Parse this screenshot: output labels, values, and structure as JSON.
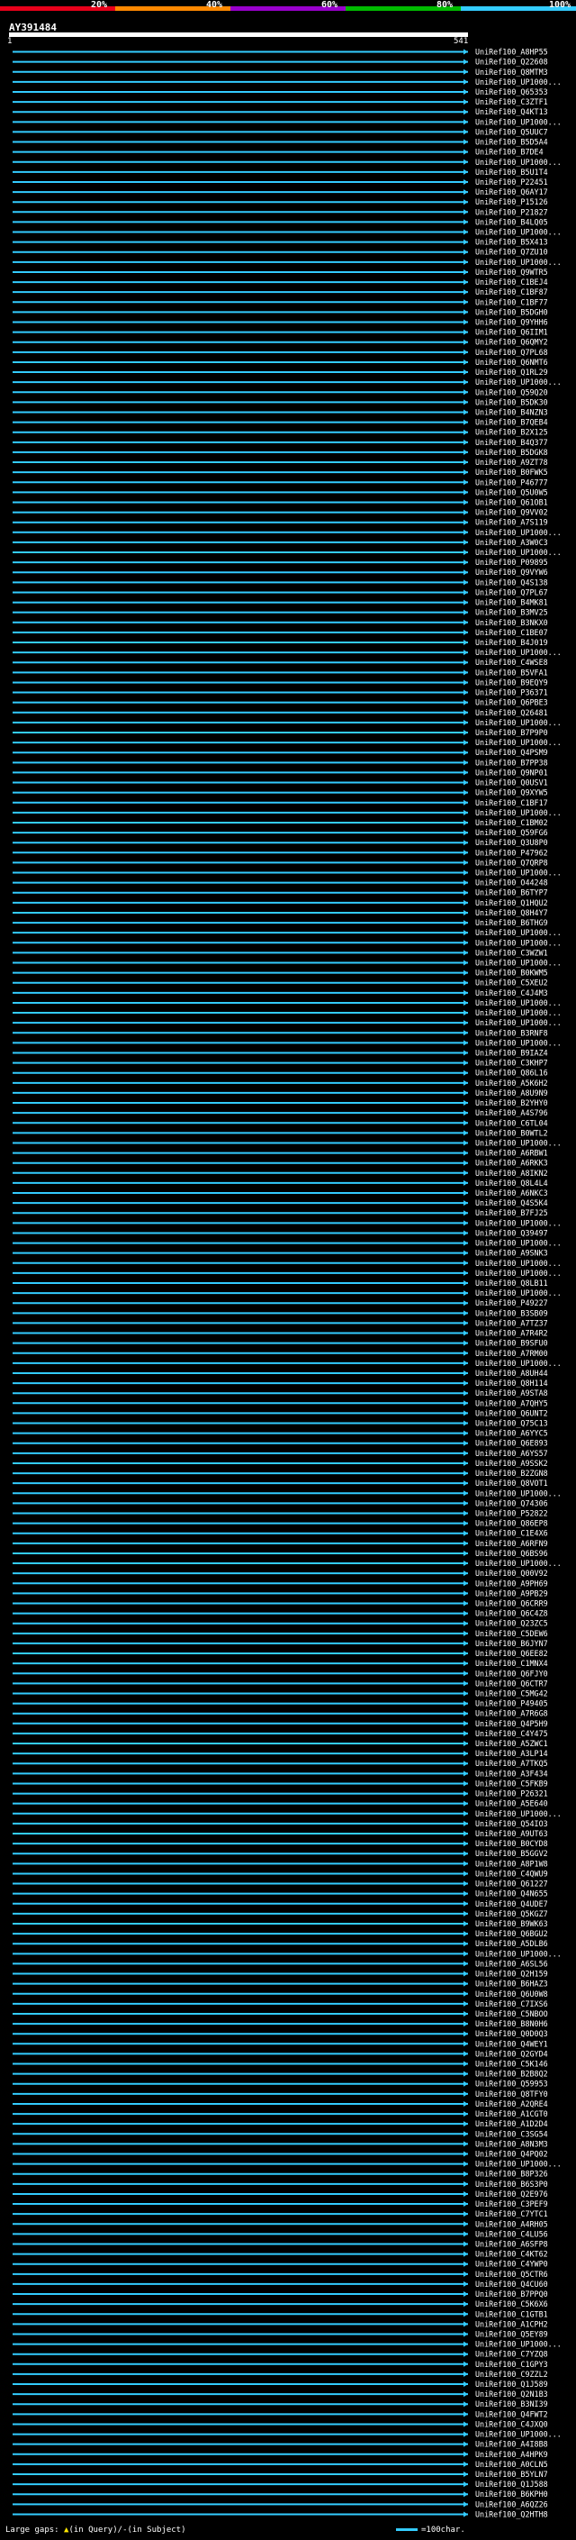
{
  "header": {
    "legend": [
      {
        "label": "20%",
        "color": "#e8001a"
      },
      {
        "label": "40%",
        "color": "#ff8800"
      },
      {
        "label": "60%",
        "color": "#9900cc"
      },
      {
        "label": "80%",
        "color": "#00bb00"
      },
      {
        "label": "100%",
        "color": "#33ccff"
      }
    ],
    "query_name": "AY391484",
    "ruler_start": "1",
    "ruler_end": "541"
  },
  "hits": [
    {
      "label": "UniRef100_A8HP55",
      "color": "#33ccff"
    },
    {
      "label": "UniRef100_Q22608",
      "color": "#33ccff"
    },
    {
      "label": "UniRef100_Q8MTM3",
      "color": "#33ccff"
    },
    {
      "label": "UniRef100_UP1000...",
      "color": "#33ccff"
    },
    {
      "label": "UniRef100_Q65353",
      "color": "#33ccff"
    },
    {
      "label": "UniRef100_C3ZTF1",
      "color": "#33ccff"
    },
    {
      "label": "UniRef100_Q4KT13",
      "color": "#33ccff"
    },
    {
      "label": "UniRef100_UP1000...",
      "color": "#33ccff"
    },
    {
      "label": "UniRef100_Q5UUC7",
      "color": "#33ccff"
    },
    {
      "label": "UniRef100_B5D5A4",
      "color": "#33ccff"
    },
    {
      "label": "UniRef100_B7DE4",
      "color": "#33ccff"
    },
    {
      "label": "UniRef100_UP1000...",
      "color": "#33ccff"
    },
    {
      "label": "UniRef100_B5U1T4",
      "color": "#33ccff"
    },
    {
      "label": "UniRef100_P22451",
      "color": "#33ccff"
    },
    {
      "label": "UniRef100_Q6AY17",
      "color": "#33ccff"
    },
    {
      "label": "UniRef100_P15126",
      "color": "#33ccff"
    },
    {
      "label": "UniRef100_P21827",
      "color": "#33ccff"
    },
    {
      "label": "UniRef100_B4LQ05",
      "color": "#33ccff"
    },
    {
      "label": "UniRef100_UP1000...",
      "color": "#33ccff"
    },
    {
      "label": "UniRef100_B5X413",
      "color": "#33ccff"
    },
    {
      "label": "UniRef100_Q7ZU10",
      "color": "#33ccff"
    },
    {
      "label": "UniRef100_UP1000...",
      "color": "#33ccff"
    },
    {
      "label": "UniRef100_Q9WTR5",
      "color": "#33ccff"
    },
    {
      "label": "UniRef100_C1BEJ4",
      "color": "#33ccff"
    },
    {
      "label": "UniRef100_C1BF87",
      "color": "#33ccff"
    },
    {
      "label": "UniRef100_C1BF77",
      "color": "#33ccff"
    },
    {
      "label": "UniRef100_B5DGH0",
      "color": "#33ccff"
    },
    {
      "label": "UniRef100_Q9YHH6",
      "color": "#33ccff"
    },
    {
      "label": "UniRef100_Q6IIM1",
      "color": "#33ccff"
    },
    {
      "label": "UniRef100_Q6QMY2",
      "color": "#33ccff"
    },
    {
      "label": "UniRef100_Q7PL68",
      "color": "#33ccff"
    },
    {
      "label": "UniRef100_Q6NMT6",
      "color": "#33ccff"
    },
    {
      "label": "UniRef100_Q1RL29",
      "color": "#33ccff"
    },
    {
      "label": "UniRef100_UP1000...",
      "color": "#33ccff"
    },
    {
      "label": "UniRef100_Q59Q20",
      "color": "#33ccff"
    },
    {
      "label": "UniRef100_B5DK30",
      "color": "#33ccff"
    },
    {
      "label": "UniRef100_B4NZN3",
      "color": "#33ccff"
    },
    {
      "label": "UniRef100_B7QEB4",
      "color": "#33ccff"
    },
    {
      "label": "UniRef100_B2X125",
      "color": "#33ccff"
    },
    {
      "label": "UniRef100_B4Q377",
      "color": "#33ccff"
    },
    {
      "label": "UniRef100_B5DGK8",
      "color": "#33ccff"
    },
    {
      "label": "UniRef100_A9ZT78",
      "color": "#33ccff"
    },
    {
      "label": "UniRef100_B0FWK5",
      "color": "#33ccff"
    },
    {
      "label": "UniRef100_P46777",
      "color": "#33ccff"
    },
    {
      "label": "UniRef100_Q5U0W5",
      "color": "#33ccff"
    },
    {
      "label": "UniRef100_Q61OB1",
      "color": "#33ccff"
    },
    {
      "label": "UniRef100_Q9VV02",
      "color": "#33ccff"
    },
    {
      "label": "UniRef100_A7S119",
      "color": "#33ccff"
    },
    {
      "label": "UniRef100_UP1000...",
      "color": "#33ccff"
    },
    {
      "label": "UniRef100_A3W0C3",
      "color": "#33ccff"
    },
    {
      "label": "UniRef100_UP1000...",
      "color": "#33ccff"
    },
    {
      "label": "UniRef100_P09895",
      "color": "#33ccff"
    },
    {
      "label": "UniRef100_Q9VYW6",
      "color": "#33ccff"
    },
    {
      "label": "UniRef100_Q4S138",
      "color": "#33ccff"
    },
    {
      "label": "UniRef100_Q7PL67",
      "color": "#33ccff"
    },
    {
      "label": "UniRef100_B4MK81",
      "color": "#33ccff"
    },
    {
      "label": "UniRef100_B3MV25",
      "color": "#33ccff"
    },
    {
      "label": "UniRef100_B3NKX0",
      "color": "#33ccff"
    },
    {
      "label": "UniRef100_C1BE07",
      "color": "#33ccff"
    },
    {
      "label": "UniRef100_B4J019",
      "color": "#33ccff"
    },
    {
      "label": "UniRef100_UP1000...",
      "color": "#33ccff"
    },
    {
      "label": "UniRef100_C4WSE8",
      "color": "#33ccff"
    },
    {
      "label": "UniRef100_B5VFA1",
      "color": "#33ccff"
    },
    {
      "label": "UniRef100_B9EQY9",
      "color": "#33ccff"
    },
    {
      "label": "UniRef100_P36371",
      "color": "#33ccff"
    },
    {
      "label": "UniRef100_Q6PBE3",
      "color": "#33ccff"
    },
    {
      "label": "UniRef100_Q26481",
      "color": "#33ccff"
    },
    {
      "label": "UniRef100_UP1000...",
      "color": "#33ccff"
    },
    {
      "label": "UniRef100_B7P9P0",
      "color": "#33ccff"
    },
    {
      "label": "UniRef100_UP1000...",
      "color": "#33ccff"
    },
    {
      "label": "UniRef100_Q4PSM9",
      "color": "#33ccff"
    },
    {
      "label": "UniRef100_B7PP38",
      "color": "#33ccff"
    },
    {
      "label": "UniRef100_Q9NP01",
      "color": "#33ccff"
    },
    {
      "label": "UniRef100_Q0USV1",
      "color": "#33ccff"
    },
    {
      "label": "UniRef100_Q9XYW5",
      "color": "#33ccff"
    },
    {
      "label": "UniRef100_C1BF17",
      "color": "#33ccff"
    },
    {
      "label": "UniRef100_UP1000...",
      "color": "#33ccff"
    },
    {
      "label": "UniRef100_C1BM02",
      "color": "#33ccff"
    },
    {
      "label": "UniRef100_Q59FG6",
      "color": "#33ccff"
    },
    {
      "label": "UniRef100_Q3U8P0",
      "color": "#33ccff"
    },
    {
      "label": "UniRef100_P47962",
      "color": "#33ccff"
    },
    {
      "label": "UniRef100_Q7QRP8",
      "color": "#33ccff"
    },
    {
      "label": "UniRef100_UP1000...",
      "color": "#33ccff"
    },
    {
      "label": "UniRef100_O44248",
      "color": "#33ccff"
    },
    {
      "label": "UniRef100_B6TYP7",
      "color": "#33ccff"
    },
    {
      "label": "UniRef100_Q1HQU2",
      "color": "#33ccff"
    },
    {
      "label": "UniRef100_Q8H4Y7",
      "color": "#33ccff"
    },
    {
      "label": "UniRef100_B6THG9",
      "color": "#33ccff"
    },
    {
      "label": "UniRef100_UP1000...",
      "color": "#33ccff"
    },
    {
      "label": "UniRef100_UP1000...",
      "color": "#33ccff"
    },
    {
      "label": "UniRef100_C3WZW1",
      "color": "#33ccff"
    },
    {
      "label": "UniRef100_UP1000...",
      "color": "#33ccff"
    },
    {
      "label": "UniRef100_B0KWM5",
      "color": "#33ccff"
    },
    {
      "label": "UniRef100_C5XEU2",
      "color": "#33ccff"
    },
    {
      "label": "UniRef100_C4J4M3",
      "color": "#33ccff"
    },
    {
      "label": "UniRef100_UP1000...",
      "color": "#33ccff"
    },
    {
      "label": "UniRef100_UP1000...",
      "color": "#33ccff"
    },
    {
      "label": "UniRef100_UP1000...",
      "color": "#33ccff"
    },
    {
      "label": "UniRef100_B3RNF8",
      "color": "#33ccff"
    },
    {
      "label": "UniRef100_UP1000...",
      "color": "#33ccff"
    },
    {
      "label": "UniRef100_B9IAZ4",
      "color": "#33ccff"
    },
    {
      "label": "UniRef100_C3KHP7",
      "color": "#33ccff"
    },
    {
      "label": "UniRef100_Q86L16",
      "color": "#33ccff"
    },
    {
      "label": "UniRef100_A5K6H2",
      "color": "#33ccff"
    },
    {
      "label": "UniRef100_A8U9N9",
      "color": "#33ccff"
    },
    {
      "label": "UniRef100_B2YHY0",
      "color": "#33ccff"
    },
    {
      "label": "UniRef100_A4S796",
      "color": "#33ccff"
    },
    {
      "label": "UniRef100_C6TL04",
      "color": "#33ccff"
    },
    {
      "label": "UniRef100_B0WTL2",
      "color": "#33ccff"
    },
    {
      "label": "UniRef100_UP1000...",
      "color": "#33ccff"
    },
    {
      "label": "UniRef100_A6RBW1",
      "color": "#33ccff"
    },
    {
      "label": "UniRef100_A6RKK3",
      "color": "#33ccff"
    },
    {
      "label": "UniRef100_A8IKN2",
      "color": "#33ccff"
    },
    {
      "label": "UniRef100_Q8L4L4",
      "color": "#33ccff"
    },
    {
      "label": "UniRef100_A6NKC3",
      "color": "#33ccff"
    },
    {
      "label": "UniRef100_Q4S5K4",
      "color": "#33ccff"
    },
    {
      "label": "UniRef100_B7FJ25",
      "color": "#33ccff"
    },
    {
      "label": "UniRef100_UP1000...",
      "color": "#33ccff"
    },
    {
      "label": "UniRef100_Q39497",
      "color": "#33ccff"
    },
    {
      "label": "UniRef100_UP1000...",
      "color": "#33ccff"
    },
    {
      "label": "UniRef100_A9SNK3",
      "color": "#33ccff"
    },
    {
      "label": "UniRef100_UP1000...",
      "color": "#33ccff"
    },
    {
      "label": "UniRef100_UP1000...",
      "color": "#33ccff"
    },
    {
      "label": "UniRef100_Q8LB11",
      "color": "#33ccff"
    },
    {
      "label": "UniRef100_UP1000...",
      "color": "#33ccff"
    },
    {
      "label": "UniRef100_P49227",
      "color": "#33ccff"
    },
    {
      "label": "UniRef100_B3SB09",
      "color": "#33ccff"
    },
    {
      "label": "UniRef100_A7TZ37",
      "color": "#33ccff"
    },
    {
      "label": "UniRef100_A7R4R2",
      "color": "#33ccff"
    },
    {
      "label": "UniRef100_B9SFU0",
      "color": "#33ccff"
    },
    {
      "label": "UniRef100_A7RM00",
      "color": "#33ccff"
    },
    {
      "label": "UniRef100_UP1000...",
      "color": "#33ccff"
    },
    {
      "label": "UniRef100_A8UH44",
      "color": "#33ccff"
    },
    {
      "label": "UniRef100_Q8H114",
      "color": "#33ccff"
    },
    {
      "label": "UniRef100_A9STA8",
      "color": "#33ccff"
    },
    {
      "label": "UniRef100_A7QHY5",
      "color": "#33ccff"
    },
    {
      "label": "UniRef100_Q6UNT2",
      "color": "#33ccff"
    },
    {
      "label": "UniRef100_Q75C13",
      "color": "#33ccff"
    },
    {
      "label": "UniRef100_A6YYC5",
      "color": "#33ccff"
    },
    {
      "label": "UniRef100_Q6E893",
      "color": "#33ccff"
    },
    {
      "label": "UniRef100_A6YS57",
      "color": "#33ccff"
    },
    {
      "label": "UniRef100_A9SSK2",
      "color": "#33ccff"
    },
    {
      "label": "UniRef100_B2ZGN8",
      "color": "#33ccff"
    },
    {
      "label": "UniRef100_Q8VOT1",
      "color": "#33ccff"
    },
    {
      "label": "UniRef100_UP1000...",
      "color": "#33ccff"
    },
    {
      "label": "UniRef100_Q74306",
      "color": "#33ccff"
    },
    {
      "label": "UniRef100_P52822",
      "color": "#33ccff"
    },
    {
      "label": "UniRef100_Q86EP8",
      "color": "#33ccff"
    },
    {
      "label": "UniRef100_C1E4X6",
      "color": "#33ccff"
    },
    {
      "label": "UniRef100_A6RFN9",
      "color": "#33ccff"
    },
    {
      "label": "UniRef100_Q6BS96",
      "color": "#33ccff"
    },
    {
      "label": "UniRef100_UP1000...",
      "color": "#33ccff"
    },
    {
      "label": "UniRef100_Q00V92",
      "color": "#33ccff"
    },
    {
      "label": "UniRef100_A9PH69",
      "color": "#33ccff"
    },
    {
      "label": "UniRef100_A9PB29",
      "color": "#33ccff"
    },
    {
      "label": "UniRef100_Q6CRR9",
      "color": "#33ccff"
    },
    {
      "label": "UniRef100_Q6C4Z8",
      "color": "#33ccff"
    },
    {
      "label": "UniRef100_Q23ZC5",
      "color": "#33ccff"
    },
    {
      "label": "UniRef100_C5DEW6",
      "color": "#33ccff"
    },
    {
      "label": "UniRef100_B6JYN7",
      "color": "#33ccff"
    },
    {
      "label": "UniRef100_Q6EE82",
      "color": "#33ccff"
    },
    {
      "label": "UniRef100_C1MNX4",
      "color": "#33ccff"
    },
    {
      "label": "UniRef100_Q6FJY0",
      "color": "#33ccff"
    },
    {
      "label": "UniRef100_Q6CTR7",
      "color": "#33ccff"
    },
    {
      "label": "UniRef100_C5MG42",
      "color": "#33ccff"
    },
    {
      "label": "UniRef100_P49405",
      "color": "#33ccff"
    },
    {
      "label": "UniRef100_A7R6G8",
      "color": "#33ccff"
    },
    {
      "label": "UniRef100_Q4P5H9",
      "color": "#33ccff"
    },
    {
      "label": "UniRef100_C4Y475",
      "color": "#33ccff"
    },
    {
      "label": "UniRef100_A5ZWC1",
      "color": "#33ccff"
    },
    {
      "label": "UniRef100_A3LP14",
      "color": "#33ccff"
    },
    {
      "label": "UniRef100_A7TKQ5",
      "color": "#33ccff"
    },
    {
      "label": "UniRef100_A3F434",
      "color": "#33ccff"
    },
    {
      "label": "UniRef100_C5FKB9",
      "color": "#33ccff"
    },
    {
      "label": "UniRef100_P26321",
      "color": "#33ccff"
    },
    {
      "label": "UniRef100_A5E640",
      "color": "#33ccff"
    },
    {
      "label": "UniRef100_UP1000...",
      "color": "#33ccff"
    },
    {
      "label": "UniRef100_Q54IO3",
      "color": "#33ccff"
    },
    {
      "label": "UniRef100_A9UT63",
      "color": "#33ccff"
    },
    {
      "label": "UniRef100_B0CYD8",
      "color": "#33ccff"
    },
    {
      "label": "UniRef100_B5GGV2",
      "color": "#33ccff"
    },
    {
      "label": "UniRef100_A8P1W8",
      "color": "#33ccff"
    },
    {
      "label": "UniRef100_C4QWU9",
      "color": "#33ccff"
    },
    {
      "label": "UniRef100_Q61227",
      "color": "#33ccff"
    },
    {
      "label": "UniRef100_Q4N655",
      "color": "#33ccff"
    },
    {
      "label": "UniRef100_Q4UDE7",
      "color": "#33ccff"
    },
    {
      "label": "UniRef100_Q5KGZ7",
      "color": "#33ccff"
    },
    {
      "label": "UniRef100_B9WK63",
      "color": "#33ccff"
    },
    {
      "label": "UniRef100_Q6BGU2",
      "color": "#33ccff"
    },
    {
      "label": "UniRef100_A5DLB6",
      "color": "#33ccff"
    },
    {
      "label": "UniRef100_UP1000...",
      "color": "#33ccff"
    },
    {
      "label": "UniRef100_A6SL56",
      "color": "#33ccff"
    },
    {
      "label": "UniRef100_Q2H159",
      "color": "#33ccff"
    },
    {
      "label": "UniRef100_B6HAZ3",
      "color": "#33ccff"
    },
    {
      "label": "UniRef100_Q6U0W8",
      "color": "#33ccff"
    },
    {
      "label": "UniRef100_C7IXS6",
      "color": "#33ccff"
    },
    {
      "label": "UniRef100_C5NBOO",
      "color": "#33ccff"
    },
    {
      "label": "UniRef100_B8N0H6",
      "color": "#33ccff"
    },
    {
      "label": "UniRef100_Q0D0Q3",
      "color": "#33ccff"
    },
    {
      "label": "UniRef100_Q4WEY1",
      "color": "#33ccff"
    },
    {
      "label": "UniRef100_Q2GYD4",
      "color": "#33ccff"
    },
    {
      "label": "UniRef100_C5K146",
      "color": "#33ccff"
    },
    {
      "label": "UniRef100_B2B8Q2",
      "color": "#33ccff"
    },
    {
      "label": "UniRef100_Q59953",
      "color": "#33ccff"
    },
    {
      "label": "UniRef100_Q8TFY0",
      "color": "#33ccff"
    },
    {
      "label": "UniRef100_A2QRE4",
      "color": "#33ccff"
    },
    {
      "label": "UniRef100_A1CGT0",
      "color": "#33ccff"
    },
    {
      "label": "UniRef100_A1D2D4",
      "color": "#33ccff"
    },
    {
      "label": "UniRef100_C3SG54",
      "color": "#33ccff"
    },
    {
      "label": "UniRef100_A8N3M3",
      "color": "#33ccff"
    },
    {
      "label": "UniRef100_Q4PQ02",
      "color": "#33ccff"
    },
    {
      "label": "UniRef100_UP1000...",
      "color": "#33ccff"
    },
    {
      "label": "UniRef100_B8P326",
      "color": "#33ccff"
    },
    {
      "label": "UniRef100_B6S3P0",
      "color": "#33ccff"
    },
    {
      "label": "UniRef100_Q2E976",
      "color": "#33ccff"
    },
    {
      "label": "UniRef100_C3PEF9",
      "color": "#33ccff"
    },
    {
      "label": "UniRef100_C7YTC1",
      "color": "#33ccff"
    },
    {
      "label": "UniRef100_A4RH05",
      "color": "#33ccff"
    },
    {
      "label": "UniRef100_C4LU56",
      "color": "#33ccff"
    },
    {
      "label": "UniRef100_A6SFP8",
      "color": "#33ccff"
    },
    {
      "label": "UniRef100_C4KT62",
      "color": "#33ccff"
    },
    {
      "label": "UniRef100_C4YWP0",
      "color": "#33ccff"
    },
    {
      "label": "UniRef100_Q5CTR6",
      "color": "#33ccff"
    },
    {
      "label": "UniRef100_Q4CU60",
      "color": "#33ccff"
    },
    {
      "label": "UniRef100_B7PPQ0",
      "color": "#33ccff"
    },
    {
      "label": "UniRef100_C5K6X6",
      "color": "#33ccff"
    },
    {
      "label": "UniRef100_C1GTB1",
      "color": "#33ccff"
    },
    {
      "label": "UniRef100_A1CPH2",
      "color": "#33ccff"
    },
    {
      "label": "UniRef100_Q5EY89",
      "color": "#33ccff"
    },
    {
      "label": "UniRef100_UP1000...",
      "color": "#33ccff"
    },
    {
      "label": "UniRef100_C7YZQ8",
      "color": "#33ccff"
    },
    {
      "label": "UniRef100_C1GPY3",
      "color": "#33ccff"
    },
    {
      "label": "UniRef100_C9ZZL2",
      "color": "#33ccff"
    },
    {
      "label": "UniRef100_Q1J589",
      "color": "#33ccff"
    },
    {
      "label": "UniRef100_Q2N1B3",
      "color": "#33ccff"
    },
    {
      "label": "UniRef100_B3NI39",
      "color": "#33ccff"
    },
    {
      "label": "UniRef100_Q4FWT2",
      "color": "#33ccff"
    },
    {
      "label": "UniRef100_C4JXQ0",
      "color": "#33ccff"
    },
    {
      "label": "UniRef100_UP1000...",
      "color": "#33ccff"
    },
    {
      "label": "UniRef100_A4I8B8",
      "color": "#33ccff"
    },
    {
      "label": "UniRef100_A4HPK9",
      "color": "#33ccff"
    },
    {
      "label": "UniRef100_A0CLN5",
      "color": "#33ccff"
    },
    {
      "label": "UniRef100_B5YLN7",
      "color": "#33ccff"
    },
    {
      "label": "UniRef100_Q1J588",
      "color": "#33ccff"
    },
    {
      "label": "UniRef100_B6KPH0",
      "color": "#33ccff"
    },
    {
      "label": "UniRef100_A6QZ26",
      "color": "#33ccff"
    },
    {
      "label": "UniRef100_Q2HTH8",
      "color": "#33ccff"
    }
  ],
  "footer": {
    "large_gaps_prefix": "Large gaps:",
    "gap_mark": "▲",
    "gap_query_text": "(in Query)/",
    "gap_subject_mark": "-",
    "gap_subject_text": "(in Subject)",
    "scale_text": "=100char."
  }
}
